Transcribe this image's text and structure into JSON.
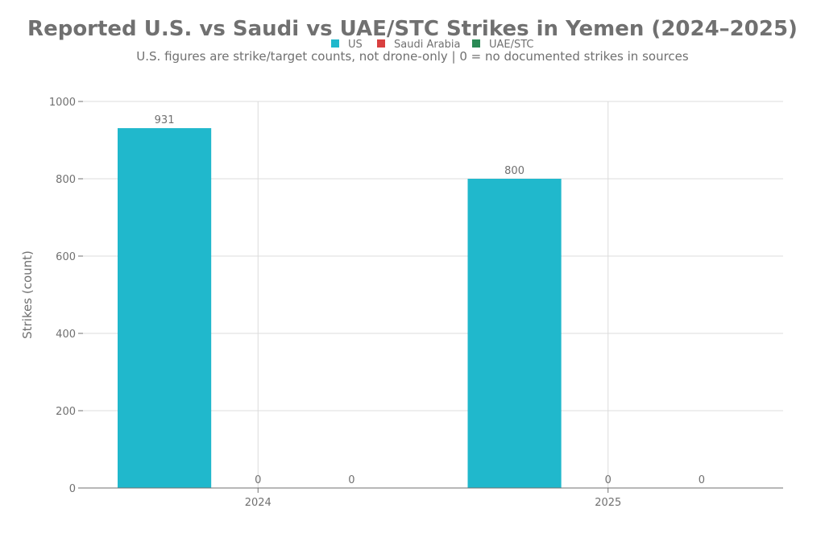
{
  "chart_data": {
    "type": "bar",
    "title": "Reported U.S. vs Saudi vs UAE/STC Strikes in Yemen (2024–2025)",
    "subtitle": "U.S. figures are strike/target counts, not drone-only | 0 = no documented strikes in sources",
    "categories": [
      "2024",
      "2025"
    ],
    "series": [
      {
        "name": "US",
        "color": "#20b8cc",
        "values": [
          931,
          800
        ]
      },
      {
        "name": "Saudi Arabia",
        "color": "#d94040",
        "values": [
          0,
          0
        ]
      },
      {
        "name": "UAE/STC",
        "color": "#2a8a55",
        "values": [
          0,
          0
        ]
      }
    ],
    "xlabel": "",
    "ylabel": "Strikes (count)",
    "ylim": [
      0,
      1000
    ],
    "yticks": [
      0,
      200,
      400,
      600,
      800,
      1000
    ],
    "grid": true,
    "legend_position": "top-center"
  }
}
